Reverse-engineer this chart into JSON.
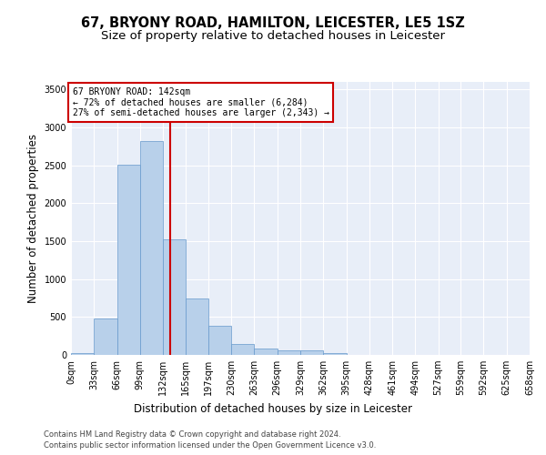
{
  "title": "67, BRYONY ROAD, HAMILTON, LEICESTER, LE5 1SZ",
  "subtitle": "Size of property relative to detached houses in Leicester",
  "xlabel": "Distribution of detached houses by size in Leicester",
  "ylabel": "Number of detached properties",
  "footer_line1": "Contains HM Land Registry data © Crown copyright and database right 2024.",
  "footer_line2": "Contains public sector information licensed under the Open Government Licence v3.0.",
  "bin_edges": [
    0,
    33,
    66,
    99,
    132,
    165,
    197,
    230,
    263,
    296,
    329,
    362,
    395,
    428,
    461,
    494,
    527,
    559,
    592,
    625,
    658
  ],
  "bar_heights": [
    25,
    480,
    2510,
    2820,
    1520,
    750,
    390,
    145,
    80,
    60,
    60,
    30,
    0,
    0,
    0,
    0,
    0,
    0,
    0,
    0
  ],
  "bar_color": "#b8d0ea",
  "bar_edge_color": "#6699cc",
  "property_size": 142,
  "vline_color": "#cc0000",
  "vline_lw": 1.5,
  "annotation_text": "67 BRYONY ROAD: 142sqm\n← 72% of detached houses are smaller (6,284)\n27% of semi-detached houses are larger (2,343) →",
  "annotation_box_color": "#cc0000",
  "ylim": [
    0,
    3600
  ],
  "yticks": [
    0,
    500,
    1000,
    1500,
    2000,
    2500,
    3000,
    3500
  ],
  "bg_color": "#e8eef8",
  "grid_color": "#ffffff",
  "title_fontsize": 10.5,
  "subtitle_fontsize": 9.5,
  "tick_fontsize": 7,
  "ylabel_fontsize": 8.5,
  "xlabel_fontsize": 8.5,
  "footer_fontsize": 6.0
}
